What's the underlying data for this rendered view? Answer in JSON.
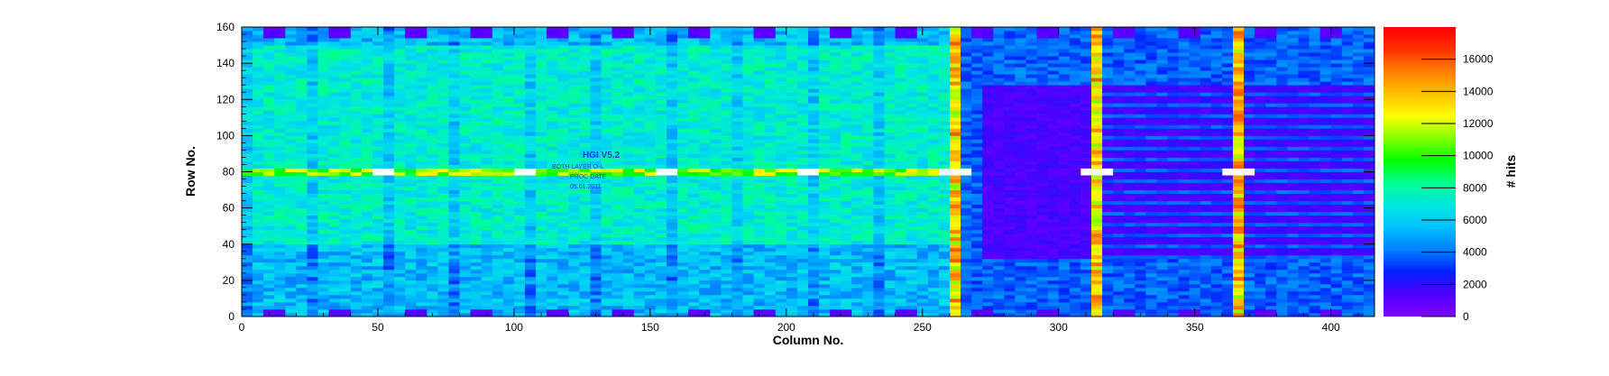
{
  "chart_data": {
    "type": "heatmap",
    "title": "",
    "xlabel": "Column No.",
    "ylabel": "Row No.",
    "xlim": [
      0,
      416
    ],
    "ylim": [
      0,
      160
    ],
    "x_ticks": [
      0,
      50,
      100,
      150,
      200,
      250,
      300,
      350,
      400
    ],
    "y_ticks": [
      0,
      20,
      40,
      60,
      80,
      100,
      120,
      140,
      160
    ],
    "colorbar": {
      "label": "# hits",
      "range": [
        0,
        18000
      ],
      "ticks": [
        0,
        2000,
        4000,
        6000,
        8000,
        10000,
        12000,
        14000,
        16000
      ],
      "palette": [
        "#8000ff",
        "#5000ff",
        "#0020ff",
        "#0080ff",
        "#00c0ff",
        "#00e8e0",
        "#00ff90",
        "#00ff00",
        "#80ff00",
        "#ffff00",
        "#ffc000",
        "#ff8000",
        "#ff3000",
        "#ff0000"
      ]
    },
    "annotations": [
      "HGI V5.2",
      "BOTH LAYER O-L",
      "PROC DATE",
      "05.01.2011"
    ],
    "regions": [
      {
        "region": "left chip area (columns 0–262)",
        "typical_hits": 6500,
        "max_hits": 16000
      },
      {
        "region": "right block, rows 32–128 (columns 272–416)",
        "typical_hits": 1300
      },
      {
        "region": "right chip area outside block (columns 262–416)",
        "typical_hits": 3500
      },
      {
        "region": "hot column lines near 52, 104, 156, 208, 261, 314, 366",
        "typical_hits": 12500
      }
    ]
  }
}
